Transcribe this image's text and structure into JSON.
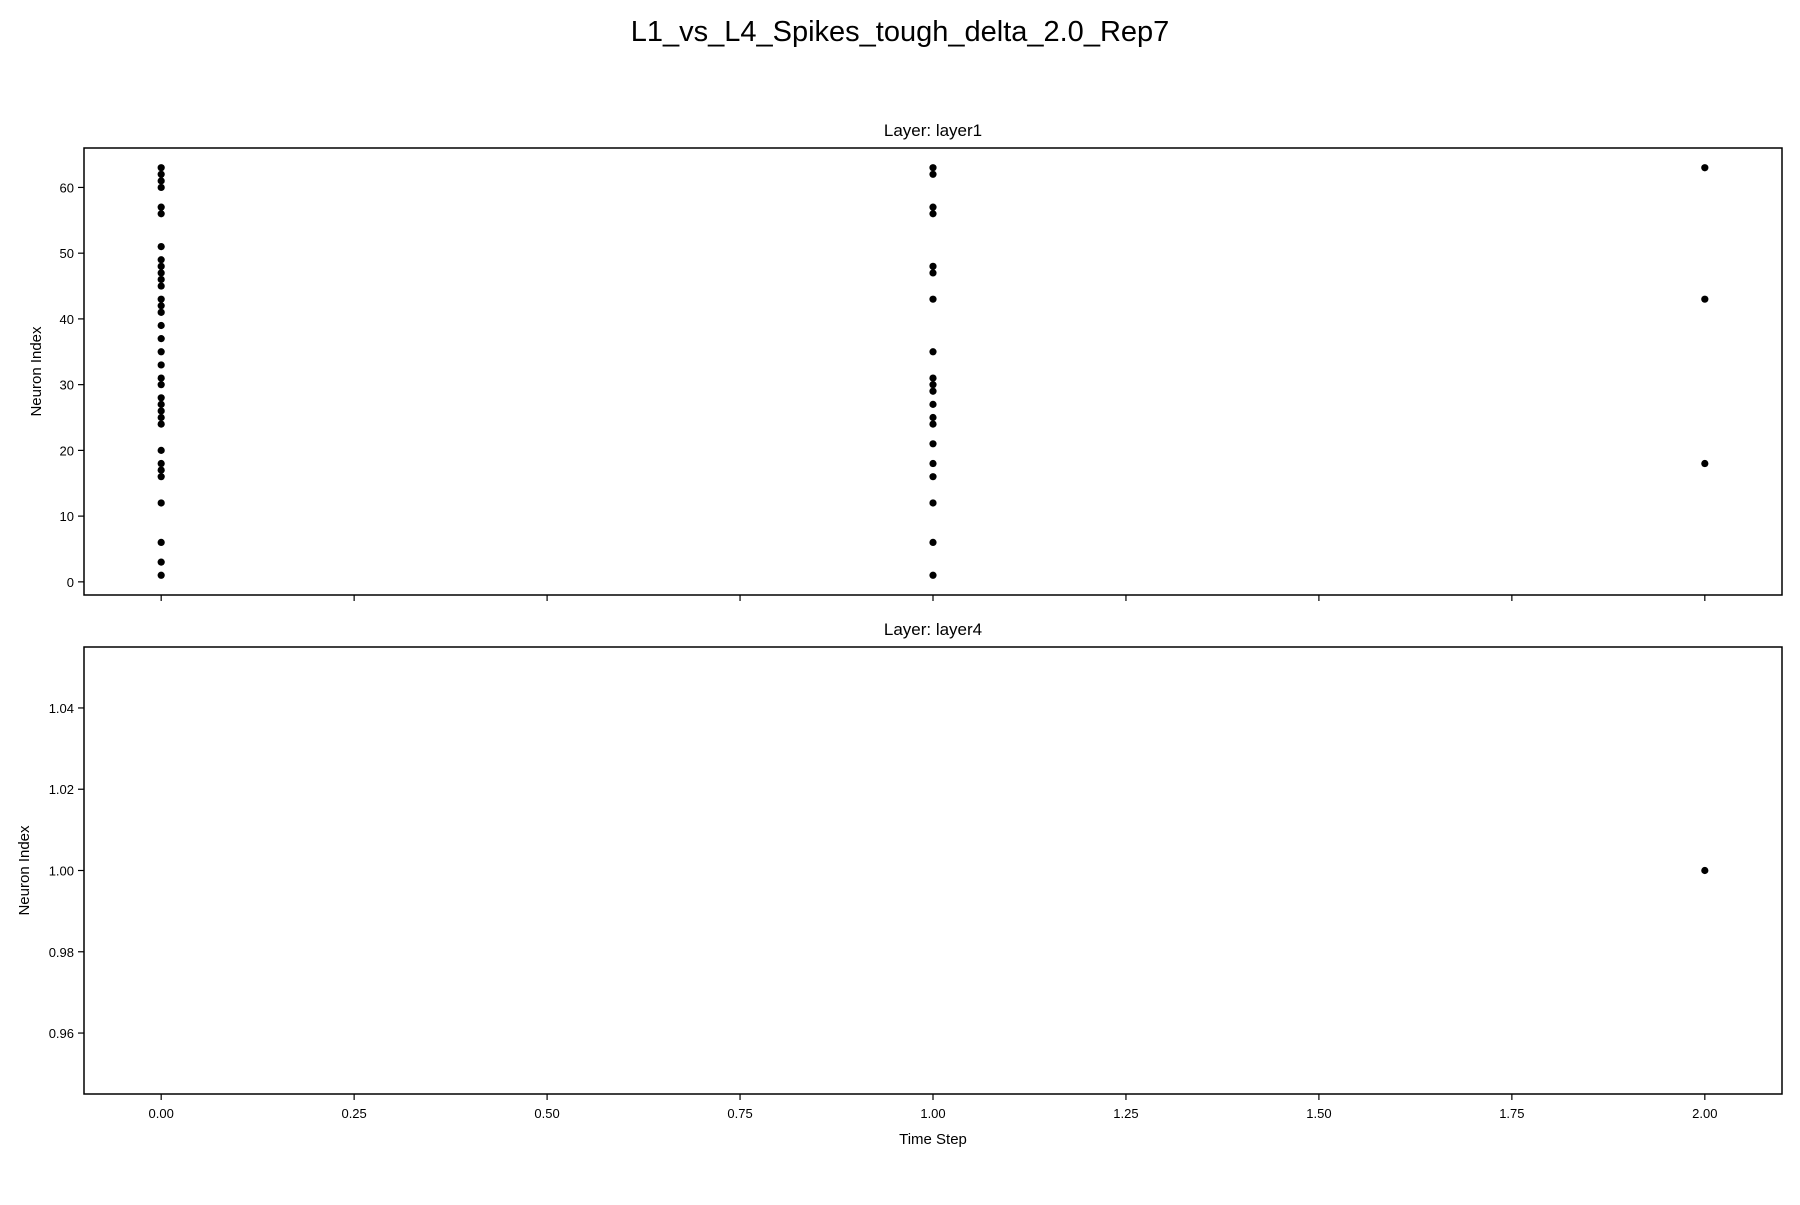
{
  "figure": {
    "suptitle": "L1_vs_L4_Spikes_tough_delta_2.0_Rep7"
  },
  "colors": {
    "marker": "#000000",
    "axes": "#000000",
    "background": "#ffffff"
  },
  "chart_data": [
    {
      "type": "scatter",
      "title": "Layer: layer1",
      "xlabel": "",
      "ylabel": "Neuron Index",
      "xlim": [
        -0.1,
        2.1
      ],
      "ylim": [
        -2,
        66
      ],
      "xticks": [
        0.0,
        0.25,
        0.5,
        0.75,
        1.0,
        1.25,
        1.5,
        1.75,
        2.0
      ],
      "xtick_labels": [],
      "yticks": [
        0,
        10,
        20,
        30,
        40,
        50,
        60
      ],
      "ytick_labels": [
        "0",
        "10",
        "20",
        "30",
        "40",
        "50",
        "60"
      ],
      "grid": false,
      "points": [
        {
          "x": 0,
          "y": 1
        },
        {
          "x": 0,
          "y": 3
        },
        {
          "x": 0,
          "y": 6
        },
        {
          "x": 0,
          "y": 12
        },
        {
          "x": 0,
          "y": 16
        },
        {
          "x": 0,
          "y": 17
        },
        {
          "x": 0,
          "y": 18
        },
        {
          "x": 0,
          "y": 20
        },
        {
          "x": 0,
          "y": 24
        },
        {
          "x": 0,
          "y": 25
        },
        {
          "x": 0,
          "y": 26
        },
        {
          "x": 0,
          "y": 27
        },
        {
          "x": 0,
          "y": 28
        },
        {
          "x": 0,
          "y": 30
        },
        {
          "x": 0,
          "y": 31
        },
        {
          "x": 0,
          "y": 33
        },
        {
          "x": 0,
          "y": 35
        },
        {
          "x": 0,
          "y": 37
        },
        {
          "x": 0,
          "y": 39
        },
        {
          "x": 0,
          "y": 41
        },
        {
          "x": 0,
          "y": 42
        },
        {
          "x": 0,
          "y": 43
        },
        {
          "x": 0,
          "y": 45
        },
        {
          "x": 0,
          "y": 46
        },
        {
          "x": 0,
          "y": 47
        },
        {
          "x": 0,
          "y": 48
        },
        {
          "x": 0,
          "y": 49
        },
        {
          "x": 0,
          "y": 51
        },
        {
          "x": 0,
          "y": 56
        },
        {
          "x": 0,
          "y": 57
        },
        {
          "x": 0,
          "y": 60
        },
        {
          "x": 0,
          "y": 61
        },
        {
          "x": 0,
          "y": 62
        },
        {
          "x": 0,
          "y": 63
        },
        {
          "x": 1,
          "y": 1
        },
        {
          "x": 1,
          "y": 6
        },
        {
          "x": 1,
          "y": 12
        },
        {
          "x": 1,
          "y": 16
        },
        {
          "x": 1,
          "y": 18
        },
        {
          "x": 1,
          "y": 21
        },
        {
          "x": 1,
          "y": 24
        },
        {
          "x": 1,
          "y": 25
        },
        {
          "x": 1,
          "y": 27
        },
        {
          "x": 1,
          "y": 29
        },
        {
          "x": 1,
          "y": 30
        },
        {
          "x": 1,
          "y": 31
        },
        {
          "x": 1,
          "y": 35
        },
        {
          "x": 1,
          "y": 43
        },
        {
          "x": 1,
          "y": 47
        },
        {
          "x": 1,
          "y": 48
        },
        {
          "x": 1,
          "y": 56
        },
        {
          "x": 1,
          "y": 57
        },
        {
          "x": 1,
          "y": 62
        },
        {
          "x": 1,
          "y": 63
        },
        {
          "x": 2,
          "y": 18
        },
        {
          "x": 2,
          "y": 43
        },
        {
          "x": 2,
          "y": 63
        }
      ]
    },
    {
      "type": "scatter",
      "title": "Layer: layer4",
      "xlabel": "Time Step",
      "ylabel": "Neuron Index",
      "xlim": [
        -0.1,
        2.1
      ],
      "ylim": [
        0.945,
        1.055
      ],
      "xticks": [
        0.0,
        0.25,
        0.5,
        0.75,
        1.0,
        1.25,
        1.5,
        1.75,
        2.0
      ],
      "xtick_labels": [
        "0.00",
        "0.25",
        "0.50",
        "0.75",
        "1.00",
        "1.25",
        "1.50",
        "1.75",
        "2.00"
      ],
      "yticks": [
        0.96,
        0.98,
        1.0,
        1.02,
        1.04
      ],
      "ytick_labels": [
        "0.96",
        "0.98",
        "1.00",
        "1.02",
        "1.04"
      ],
      "grid": false,
      "points": [
        {
          "x": 2,
          "y": 1.0
        }
      ]
    }
  ]
}
